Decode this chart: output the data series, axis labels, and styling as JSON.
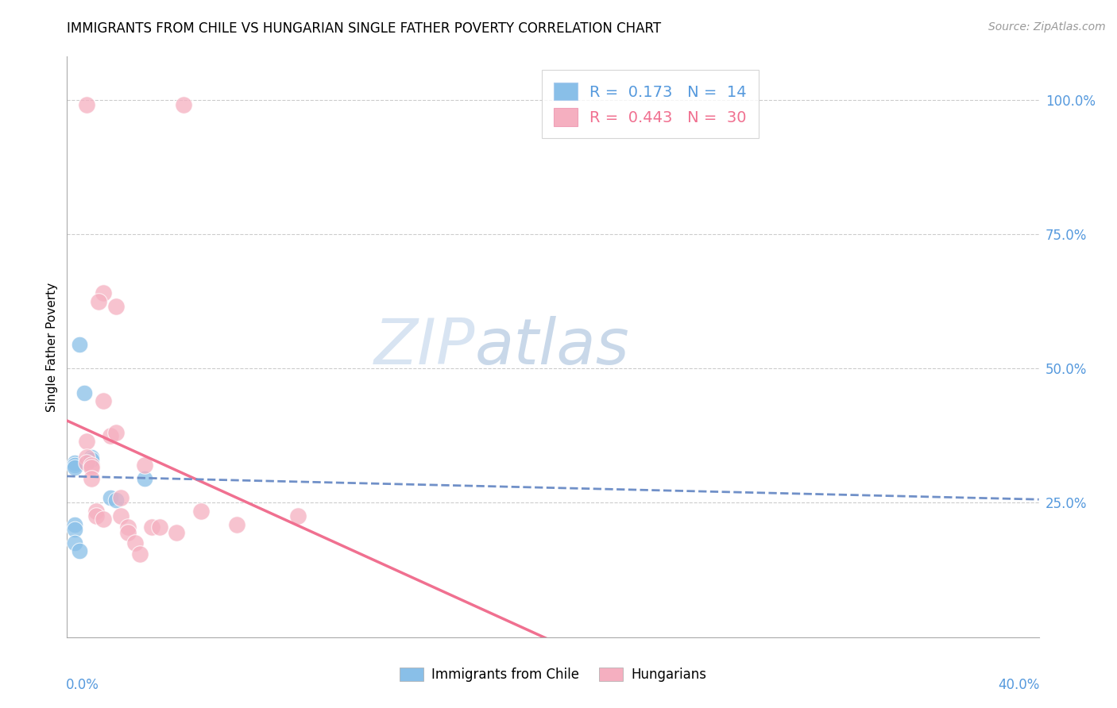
{
  "title": "IMMIGRANTS FROM CHILE VS HUNGARIAN SINGLE FATHER POVERTY CORRELATION CHART",
  "source": "Source: ZipAtlas.com",
  "ylabel": "Single Father Poverty",
  "legend_chile": {
    "R": "0.173",
    "N": "14"
  },
  "legend_hungarian": {
    "R": "0.443",
    "N": "30"
  },
  "chile_points": [
    [
      0.5,
      54.5
    ],
    [
      0.7,
      45.5
    ],
    [
      1.0,
      33.5
    ],
    [
      1.0,
      33.0
    ],
    [
      0.3,
      32.5
    ],
    [
      0.3,
      32.0
    ],
    [
      0.3,
      31.5
    ],
    [
      0.3,
      21.0
    ],
    [
      0.3,
      20.0
    ],
    [
      0.3,
      17.5
    ],
    [
      0.5,
      16.0
    ],
    [
      1.8,
      26.0
    ],
    [
      2.0,
      25.5
    ],
    [
      3.2,
      29.5
    ]
  ],
  "hungarian_points": [
    [
      0.8,
      99.0
    ],
    [
      4.8,
      99.0
    ],
    [
      1.5,
      64.0
    ],
    [
      1.3,
      62.5
    ],
    [
      2.0,
      61.5
    ],
    [
      1.5,
      44.0
    ],
    [
      0.8,
      36.5
    ],
    [
      0.8,
      33.5
    ],
    [
      0.8,
      32.5
    ],
    [
      1.0,
      32.0
    ],
    [
      1.0,
      31.5
    ],
    [
      1.0,
      29.5
    ],
    [
      1.2,
      23.5
    ],
    [
      1.2,
      22.5
    ],
    [
      1.5,
      22.0
    ],
    [
      1.8,
      37.5
    ],
    [
      2.0,
      38.0
    ],
    [
      2.2,
      26.0
    ],
    [
      2.2,
      22.5
    ],
    [
      2.5,
      20.5
    ],
    [
      2.5,
      19.5
    ],
    [
      2.8,
      17.5
    ],
    [
      3.0,
      15.5
    ],
    [
      3.2,
      32.0
    ],
    [
      3.5,
      20.5
    ],
    [
      3.8,
      20.5
    ],
    [
      4.5,
      19.5
    ],
    [
      5.5,
      23.5
    ],
    [
      7.0,
      21.0
    ],
    [
      9.5,
      22.5
    ]
  ],
  "chile_color": "#89bfe8",
  "hungarian_color": "#f5afc0",
  "chile_line_color": "#7090c8",
  "hungarian_line_color": "#f07090",
  "watermark_zip": "ZIP",
  "watermark_atlas": "atlas",
  "xmin": 0.0,
  "xmax": 40.0,
  "ymin": 0.0,
  "ymax": 108.0,
  "yticks": [
    25.0,
    50.0,
    75.0,
    100.0
  ],
  "ytick_labels": [
    "25.0%",
    "50.0%",
    "75.0%",
    "100.0%"
  ],
  "blue_label_color": "#5599dd",
  "pink_label_color": "#f07090",
  "grid_color": "#cccccc",
  "title_fontsize": 12,
  "axis_label_fontsize": 11,
  "tick_label_fontsize": 12
}
